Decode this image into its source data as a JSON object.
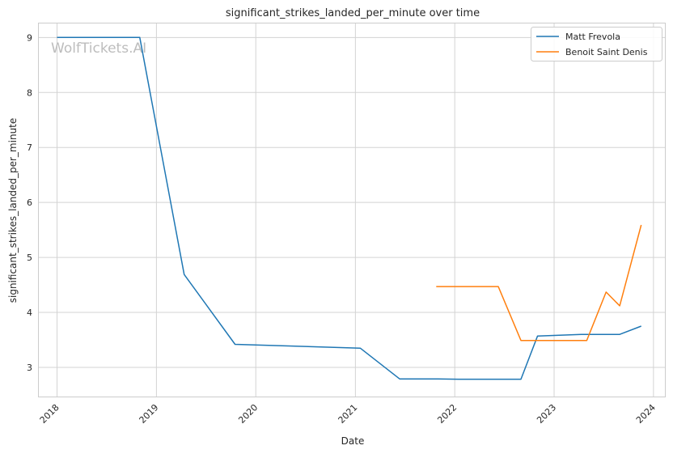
{
  "chart_data": {
    "type": "line",
    "title": "significant_strikes_landed_per_minute over time",
    "xlabel": "Date",
    "ylabel": "significant_strikes_landed_per_minute",
    "watermark": "WolfTickets.AI",
    "x_ticks": [
      "2018",
      "2019",
      "2020",
      "2021",
      "2022",
      "2023",
      "2024"
    ],
    "y_ticks": [
      "3",
      "4",
      "5",
      "6",
      "7",
      "8",
      "9"
    ],
    "xlim": [
      "2017-10-26",
      "2024-02-12"
    ],
    "ylim": [
      2.47,
      9.27
    ],
    "grid": true,
    "legend_position": "top-right",
    "series": [
      {
        "name": "Matt Frevola",
        "color": "#1f77b4",
        "points": [
          [
            "2018-01-01",
            9.0
          ],
          [
            "2018-11-01",
            9.0
          ],
          [
            "2019-04-13",
            4.69
          ],
          [
            "2019-10-17",
            3.42
          ],
          [
            "2021-01-19",
            3.35
          ],
          [
            "2021-06-13",
            2.79
          ],
          [
            "2021-10-31",
            2.79
          ],
          [
            "2022-01-15",
            2.785
          ],
          [
            "2022-09-01",
            2.785
          ],
          [
            "2022-11-01",
            3.57
          ],
          [
            "2023-04-10",
            3.6
          ],
          [
            "2023-08-30",
            3.6
          ],
          [
            "2023-11-17",
            3.75
          ]
        ]
      },
      {
        "name": "Benoit Saint Denis",
        "color": "#ff7f0e",
        "points": [
          [
            "2021-10-25",
            4.47
          ],
          [
            "2022-06-10",
            4.47
          ],
          [
            "2022-09-01",
            3.49
          ],
          [
            "2023-05-01",
            3.49
          ],
          [
            "2023-07-11",
            4.37
          ],
          [
            "2023-08-30",
            4.12
          ],
          [
            "2023-11-17",
            5.59
          ]
        ]
      }
    ]
  }
}
